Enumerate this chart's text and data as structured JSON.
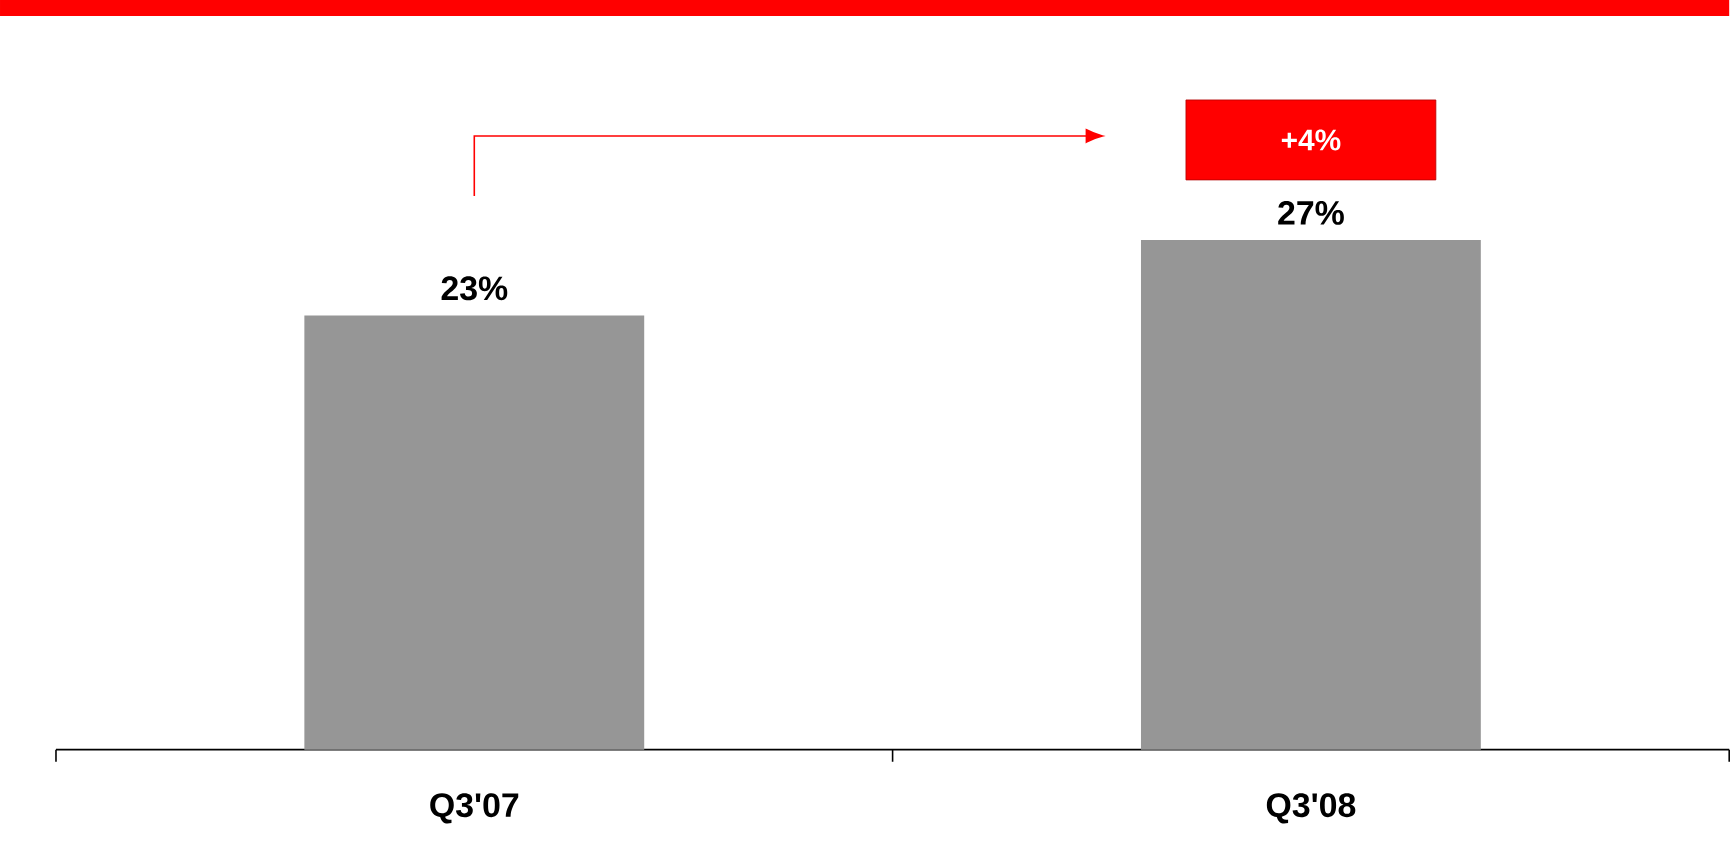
{
  "chart_data": {
    "type": "bar",
    "categories": [
      "Q3'07",
      "Q3'08"
    ],
    "values": [
      23,
      27
    ],
    "color": "#969696",
    "value_labels": [
      "23%",
      "27%"
    ],
    "annotations": [
      "+4%"
    ]
  }
}
